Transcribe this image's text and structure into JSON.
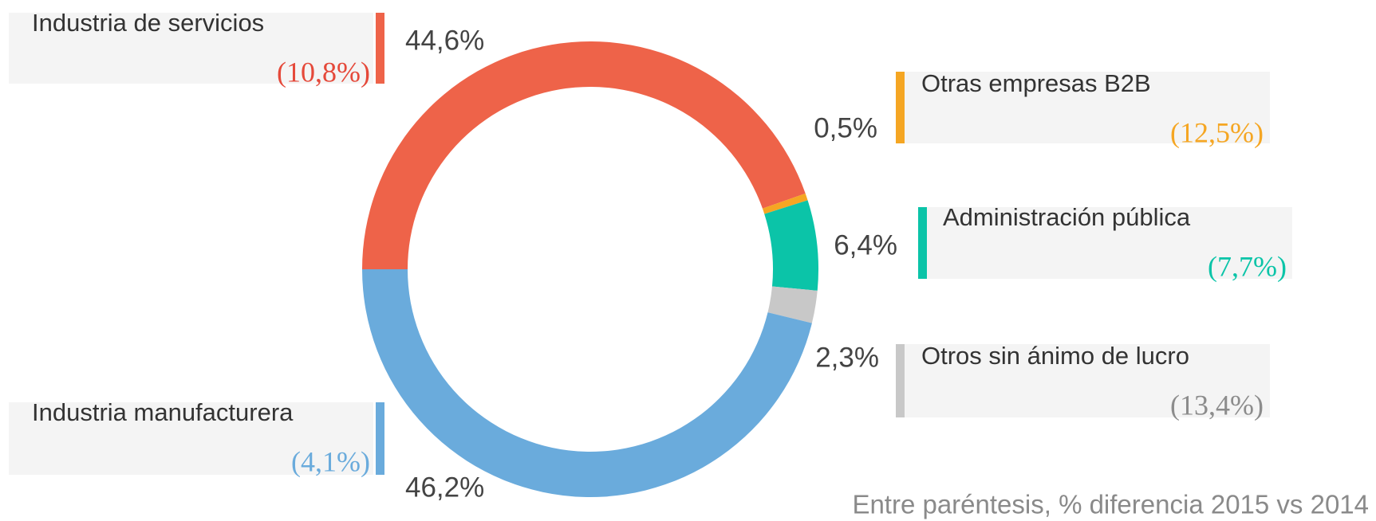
{
  "chart_data": {
    "type": "donut",
    "categories": [
      "Industria de servicios",
      "Otras empresas B2B",
      "Administración pública",
      "Otros sin ánimo de lucro",
      "Industria manufacturera"
    ],
    "values": [
      44.6,
      0.5,
      6.4,
      2.3,
      46.2
    ],
    "value_labels": [
      "44,6%",
      "0,5%",
      "6,4%",
      "2,3%",
      "46,2%"
    ],
    "changes": [
      10.8,
      12.5,
      7.7,
      13.4,
      4.1
    ],
    "change_labels": [
      "(10,8%)",
      "(12,5%)",
      "(7,7%)",
      "(13,4%)",
      "(4,1%)"
    ],
    "colors": [
      "#ee6349",
      "#f5a623",
      "#0bc4a8",
      "#c8c8c8",
      "#6aabdc"
    ],
    "change_colors": [
      "#e5493a",
      "#f5a623",
      "#0bc4a8",
      "#8c8c8c",
      "#6aabdc"
    ],
    "note": "Entre paréntesis, % diferencia 2015 vs 2014"
  }
}
